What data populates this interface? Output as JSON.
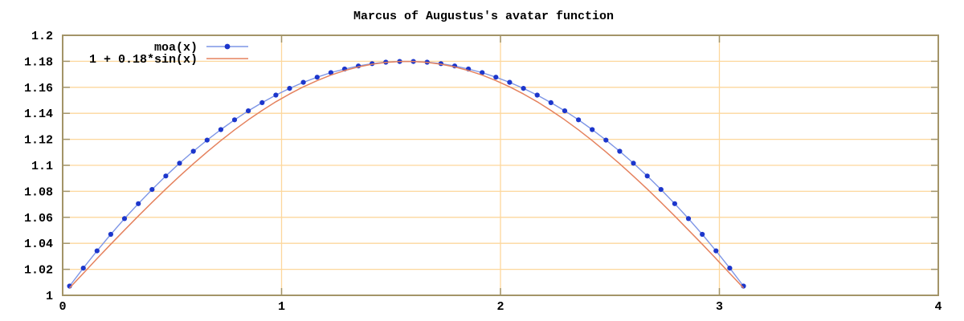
{
  "page": {
    "background": "#ffffff"
  },
  "chart_data": {
    "type": "line",
    "title": "Marcus of Augustus's avatar function",
    "xlabel": "",
    "ylabel": "",
    "grid": true,
    "legend_position": "top-left-inside",
    "x_axis": {
      "range": [
        0,
        4
      ],
      "ticks": [
        {
          "value": 0,
          "label": "0"
        },
        {
          "value": 1,
          "label": "1"
        },
        {
          "value": 2,
          "label": "2"
        },
        {
          "value": 3,
          "label": "3"
        },
        {
          "value": 4,
          "label": "4"
        }
      ]
    },
    "y_axis": {
      "range": [
        1,
        1.2
      ],
      "ticks": [
        {
          "value": 1.0,
          "label": "1"
        },
        {
          "value": 1.02,
          "label": "1.02"
        },
        {
          "value": 1.04,
          "label": "1.04"
        },
        {
          "value": 1.06,
          "label": "1.06"
        },
        {
          "value": 1.08,
          "label": "1.08"
        },
        {
          "value": 1.1,
          "label": "1.1"
        },
        {
          "value": 1.12,
          "label": "1.12"
        },
        {
          "value": 1.14,
          "label": "1.14"
        },
        {
          "value": 1.16,
          "label": "1.16"
        },
        {
          "value": 1.18,
          "label": "1.18"
        },
        {
          "value": 1.2,
          "label": "1.2"
        }
      ]
    },
    "x": [
      0.0314,
      0.0942,
      0.1571,
      0.2199,
      0.2827,
      0.3456,
      0.4084,
      0.4712,
      0.5341,
      0.5969,
      0.6597,
      0.7226,
      0.7854,
      0.8482,
      0.9111,
      0.9739,
      1.0367,
      1.0996,
      1.1624,
      1.2252,
      1.2881,
      1.3509,
      1.4137,
      1.4765,
      1.5394,
      1.6022,
      1.665,
      1.7279,
      1.7907,
      1.8535,
      1.9164,
      1.9792,
      2.042,
      2.1049,
      2.1677,
      2.2305,
      2.2934,
      2.3562,
      2.419,
      2.4819,
      2.5447,
      2.6075,
      2.6704,
      2.7332,
      2.796,
      2.8588,
      2.9217,
      2.9845,
      3.0473,
      3.1102
    ],
    "series": [
      {
        "name": "moa(x)",
        "style": "linespoints",
        "line_color": "#7d95e6",
        "line_width": 1.4,
        "marker": "circle",
        "marker_color": "#1c36cc",
        "marker_radius": 3.1,
        "y": [
          1.0071,
          1.0209,
          1.0342,
          1.0469,
          1.059,
          1.0705,
          1.0814,
          1.0918,
          1.1016,
          1.1108,
          1.1194,
          1.1275,
          1.135,
          1.1419,
          1.1482,
          1.154,
          1.1592,
          1.1638,
          1.1678,
          1.1713,
          1.1741,
          1.1764,
          1.1782,
          1.1793,
          1.1799,
          1.1799,
          1.1793,
          1.1782,
          1.1764,
          1.1741,
          1.1713,
          1.1678,
          1.1638,
          1.1592,
          1.154,
          1.1482,
          1.1419,
          1.135,
          1.1275,
          1.1194,
          1.1108,
          1.1016,
          1.0918,
          1.0814,
          1.0705,
          1.059,
          1.0469,
          1.0342,
          1.0209,
          1.0071
        ]
      },
      {
        "name": "1 + 0.18*sin(x)",
        "style": "lines",
        "line_color": "#e5825e",
        "line_width": 1.5,
        "y": [
          1.0057,
          1.0169,
          1.0282,
          1.0393,
          1.0502,
          1.061,
          1.0715,
          1.0817,
          1.0916,
          1.1012,
          1.1103,
          1.119,
          1.1273,
          1.135,
          1.1422,
          1.1489,
          1.1549,
          1.1604,
          1.1652,
          1.1694,
          1.1729,
          1.1757,
          1.1778,
          1.1792,
          1.1799,
          1.1799,
          1.1792,
          1.1778,
          1.1757,
          1.1729,
          1.1694,
          1.1652,
          1.1604,
          1.1549,
          1.1489,
          1.1422,
          1.135,
          1.1273,
          1.119,
          1.1103,
          1.1012,
          1.0916,
          1.0817,
          1.0715,
          1.061,
          1.0502,
          1.0393,
          1.0282,
          1.0169,
          1.0057
        ]
      }
    ],
    "colors": {
      "grid": "#fdd79c",
      "border": "#a39468",
      "text": "#000000",
      "background": "#ffffff"
    }
  }
}
